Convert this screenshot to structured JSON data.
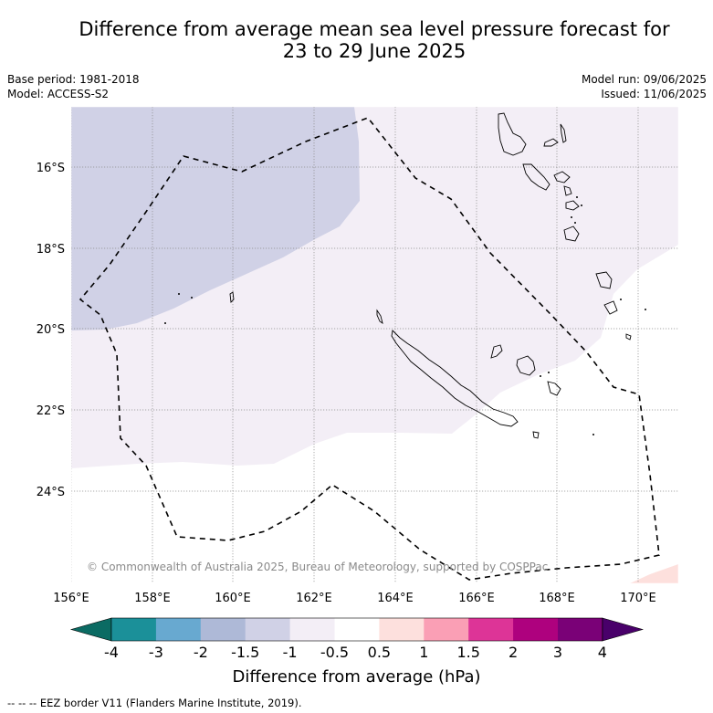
{
  "title": {
    "line1": "Difference from average mean sea level pressure forecast for",
    "line2": "23 to 29 June 2025"
  },
  "meta_left": {
    "base_period": "Base period: 1981-2018",
    "model": "Model: ACCESS-S2"
  },
  "meta_right": {
    "model_run": "Model run: 09/06/2025",
    "issued": "Issued: 11/06/2025"
  },
  "map": {
    "lat_labels": [
      "16°S",
      "18°S",
      "20°S",
      "22°S",
      "24°S"
    ],
    "lon_labels": [
      "156°E",
      "158°E",
      "160°E",
      "162°E",
      "164°E",
      "166°E",
      "168°E",
      "170°E"
    ],
    "extent": {
      "lon": [
        156,
        171
      ],
      "lat": [
        -26.5,
        -14.7
      ]
    },
    "gridlines": true,
    "copyright": "© Commonwealth of Australia 2025, Bureau of Meteorology, supported by COSPPac"
  },
  "colorbar": {
    "ticks": [
      "-4",
      "-3",
      "-2",
      "-1.5",
      "-1",
      "-0.5",
      "0.5",
      "1",
      "1.5",
      "2",
      "3",
      "4"
    ],
    "colors": [
      "#0b6b63",
      "#1b9099",
      "#68a9d0",
      "#aeb9d7",
      "#d0d1e6",
      "#f3eef6",
      "#ffffff",
      "#fde0dd",
      "#fa9fb5",
      "#dd3497",
      "#ae017e",
      "#7a0177",
      "#49006a"
    ],
    "label": "Difference from average (hPa)"
  },
  "footnote": "--  --  -- EEZ border V11 (Flanders Marine Institute, 2019)."
}
